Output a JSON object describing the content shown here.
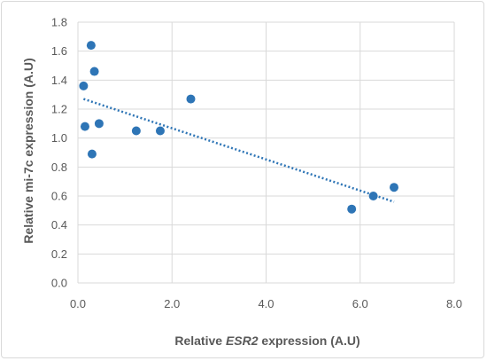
{
  "chart_data": {
    "type": "scatter",
    "title": "",
    "xlabel": {
      "before": "Relative ",
      "italic": "ESR2",
      "after": " expression (A.U)"
    },
    "ylabel": "Relative mi-7c expression  (A.U)",
    "xlim": [
      0,
      8
    ],
    "ylim": [
      0,
      1.8
    ],
    "xticks": [
      "0.0",
      "2.0",
      "4.0",
      "6.0",
      "8.0"
    ],
    "yticks": [
      "0.0",
      "0.2",
      "0.4",
      "0.6",
      "0.8",
      "1.0",
      "1.2",
      "1.4",
      "1.6",
      "1.8"
    ],
    "grid": true,
    "legend": "none",
    "marker_color": "#2e75b6",
    "points": [
      {
        "x": 0.28,
        "y": 1.64
      },
      {
        "x": 0.35,
        "y": 1.46
      },
      {
        "x": 0.12,
        "y": 1.36
      },
      {
        "x": 0.15,
        "y": 1.08
      },
      {
        "x": 0.45,
        "y": 1.1
      },
      {
        "x": 0.3,
        "y": 0.89
      },
      {
        "x": 1.24,
        "y": 1.05
      },
      {
        "x": 1.75,
        "y": 1.05
      },
      {
        "x": 2.4,
        "y": 1.27
      },
      {
        "x": 5.82,
        "y": 0.51
      },
      {
        "x": 6.28,
        "y": 0.6
      },
      {
        "x": 6.72,
        "y": 0.66
      }
    ],
    "trendline": {
      "style": "dotted",
      "color": "#2e75b6",
      "x": [
        0.12,
        6.72
      ],
      "y": [
        1.27,
        0.56
      ]
    }
  }
}
